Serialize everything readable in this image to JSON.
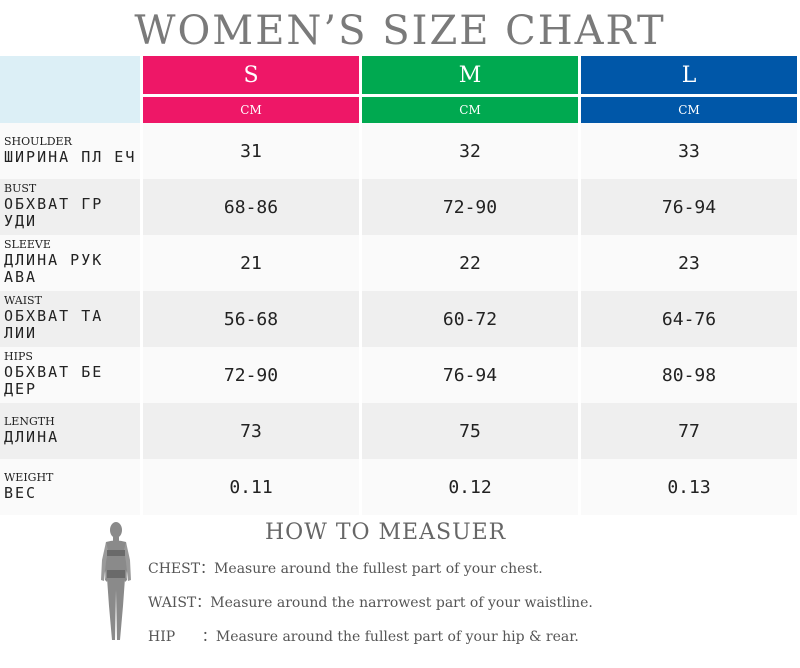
{
  "title": "WOMEN’S SIZE CHART",
  "sizes": [
    {
      "label": "S",
      "unit": "CM",
      "color": "#ee1767"
    },
    {
      "label": "M",
      "unit": "CM",
      "color": "#00a950"
    },
    {
      "label": "L",
      "unit": "CM",
      "color": "#0057a8"
    }
  ],
  "rows": [
    {
      "en": "SHOULDER",
      "ru": "ШИРИНА ПЛ ЕЧ",
      "values": [
        "31",
        "32",
        "33"
      ]
    },
    {
      "en": "BUST",
      "ru": "ОБХВАТ ГР УДИ",
      "values": [
        "68-86",
        "72-90",
        "76-94"
      ]
    },
    {
      "en": "SLEEVE",
      "ru": "ДЛИНА РУК АВА",
      "values": [
        "21",
        "22",
        "23"
      ]
    },
    {
      "en": "WAIST",
      "ru": "ОБХВАТ ТА ЛИИ",
      "values": [
        "56-68",
        "60-72",
        "64-76"
      ]
    },
    {
      "en": "HIPS",
      "ru": "ОБХВАТ БЕ ДЕР",
      "values": [
        "72-90",
        "76-94",
        "80-98"
      ]
    },
    {
      "en": "LENGTH",
      "ru": "ДЛИНА",
      "values": [
        "73",
        "75",
        "77"
      ]
    },
    {
      "en": "WEIGHT",
      "ru": "ВЕС",
      "values": [
        "0.11",
        "0.12",
        "0.13"
      ]
    }
  ],
  "how_to": {
    "title": "HOW TO MEASUER",
    "chest": "CHEST：Measure around the fullest part of your chest.",
    "waist": "WAIST：Measure around the narrowest part of your waistline.",
    "hip": "HIP      ：Measure around the fullest part of your hip & rear."
  }
}
